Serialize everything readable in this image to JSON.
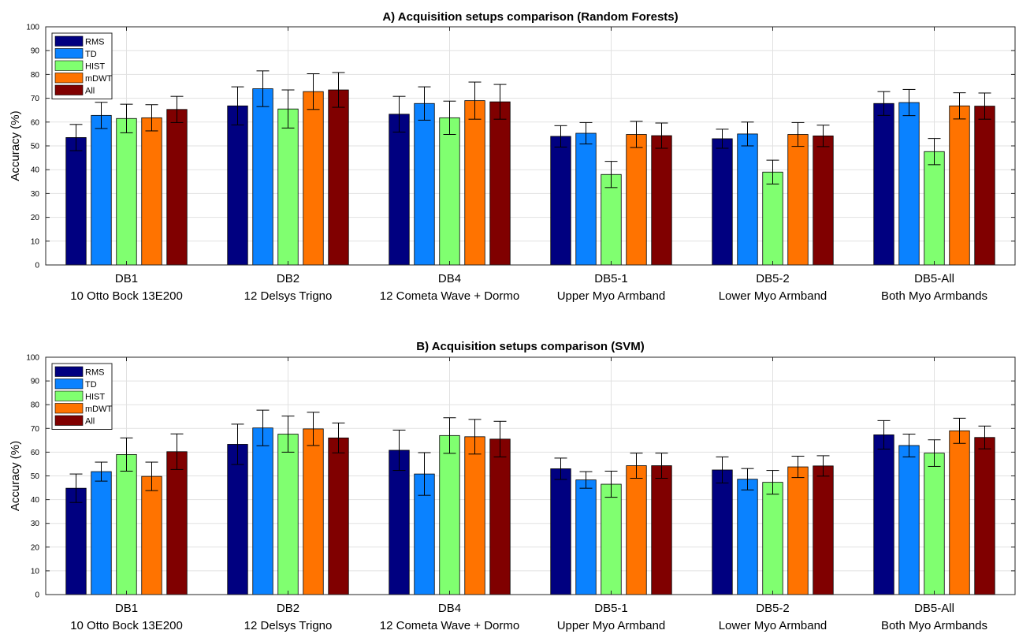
{
  "colors": {
    "series": [
      "#000080",
      "#0a82ff",
      "#80ff70",
      "#ff7300",
      "#800000"
    ],
    "grid": "#e1e1e1",
    "axis": "#262626"
  },
  "chart_data": [
    {
      "type": "bar",
      "title": "A) Acquisition setups comparison (Random Forests)",
      "xlabel": "",
      "ylabel": "Accuracy (%)",
      "ylim": [
        0,
        100
      ],
      "yticks": [
        0,
        10,
        20,
        30,
        40,
        50,
        60,
        70,
        80,
        90,
        100
      ],
      "grid": true,
      "legend_position": "top-left",
      "categories": [
        "DB1",
        "DB2",
        "DB4",
        "DB5-1",
        "DB5-2",
        "DB5-All"
      ],
      "category_sublabels": [
        "10 Otto Bock 13E200",
        "12 Delsys Trigno",
        "12 Cometa Wave + Dormo",
        "Upper Myo Armband",
        "Lower Myo Armband",
        "Both Myo Armbands"
      ],
      "series": [
        {
          "name": "RMS",
          "values": [
            53.5,
            66.8,
            63.3,
            54.0,
            53.0,
            67.8
          ],
          "errors": [
            5.5,
            8.0,
            7.5,
            4.5,
            4.0,
            5.0
          ]
        },
        {
          "name": "TD",
          "values": [
            62.8,
            74.0,
            67.8,
            55.3,
            55.0,
            68.2
          ],
          "errors": [
            5.5,
            7.5,
            7.0,
            4.5,
            5.0,
            5.5
          ]
        },
        {
          "name": "HIST",
          "values": [
            61.5,
            65.5,
            61.8,
            38.0,
            39.0,
            47.6
          ],
          "errors": [
            6.0,
            8.0,
            7.0,
            5.5,
            5.0,
            5.5
          ]
        },
        {
          "name": "mDWT",
          "values": [
            61.8,
            72.8,
            69.0,
            54.8,
            54.8,
            66.8
          ],
          "errors": [
            5.5,
            7.5,
            7.8,
            5.5,
            5.0,
            5.5
          ]
        },
        {
          "name": "All",
          "values": [
            65.3,
            73.5,
            68.5,
            54.3,
            54.2,
            66.7
          ],
          "errors": [
            5.5,
            7.3,
            7.3,
            5.3,
            4.5,
            5.5
          ]
        }
      ]
    },
    {
      "type": "bar",
      "title": "B) Acquisition setups comparison (SVM)",
      "xlabel": "",
      "ylabel": "Accuracy (%)",
      "ylim": [
        0,
        100
      ],
      "yticks": [
        0,
        10,
        20,
        30,
        40,
        50,
        60,
        70,
        80,
        90,
        100
      ],
      "grid": true,
      "legend_position": "top-left",
      "categories": [
        "DB1",
        "DB2",
        "DB4",
        "DB5-1",
        "DB5-2",
        "DB5-All"
      ],
      "category_sublabels": [
        "10 Otto Bock 13E200",
        "12 Delsys Trigno",
        "12 Cometa Wave + Dormo",
        "Upper Myo Armband",
        "Lower Myo Armband",
        "Both Myo Armbands"
      ],
      "series": [
        {
          "name": "RMS",
          "values": [
            44.8,
            63.3,
            60.8,
            53.0,
            52.5,
            67.3
          ],
          "errors": [
            6.0,
            8.5,
            8.5,
            4.5,
            5.5,
            6.0
          ]
        },
        {
          "name": "TD",
          "values": [
            51.8,
            70.2,
            50.8,
            48.3,
            48.6,
            62.8
          ],
          "errors": [
            4.0,
            7.5,
            9.0,
            3.5,
            4.5,
            4.8
          ]
        },
        {
          "name": "HIST",
          "values": [
            59.0,
            67.6,
            67.0,
            46.5,
            47.3,
            59.6
          ],
          "errors": [
            7.0,
            7.6,
            7.5,
            5.5,
            5.0,
            5.6
          ]
        },
        {
          "name": "mDWT",
          "values": [
            49.8,
            69.8,
            66.5,
            54.3,
            53.8,
            69.0
          ],
          "errors": [
            6.0,
            7.0,
            7.3,
            5.3,
            4.5,
            5.3
          ]
        },
        {
          "name": "All",
          "values": [
            60.2,
            66.0,
            65.5,
            54.3,
            54.2,
            66.2
          ],
          "errors": [
            7.5,
            6.3,
            7.5,
            5.3,
            4.3,
            4.8
          ]
        }
      ]
    }
  ]
}
